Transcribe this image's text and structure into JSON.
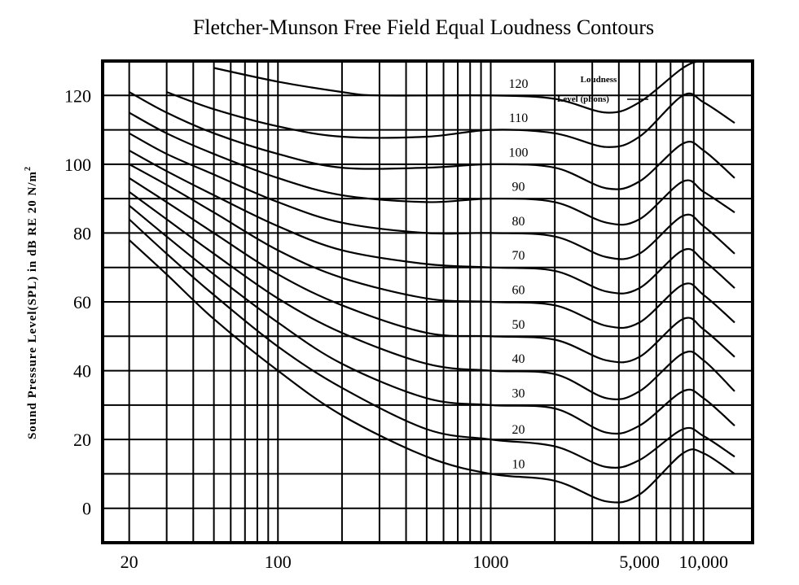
{
  "chart_data": {
    "type": "line",
    "title": "Fletcher-Munson Free Field Equal Loudness Contours",
    "xlabel": "",
    "ylabel": "Sound Pressure Level(SPL) in dB RE 20 N/m",
    "ylabel_superscript": "2",
    "x_scale": "log",
    "xlim": [
      15,
      17000
    ],
    "ylim": [
      -10,
      130
    ],
    "x_ticks": [
      20,
      100,
      1000,
      5000,
      10000
    ],
    "x_tick_labels": [
      "20",
      "100",
      "1000",
      "5,000",
      "10,000"
    ],
    "y_ticks": [
      0,
      20,
      40,
      60,
      80,
      100,
      120
    ],
    "y_tick_labels": [
      "0",
      "20",
      "40",
      "60",
      "80",
      "100",
      "120"
    ],
    "grid": true,
    "legend": {
      "title_line1": "Loudness",
      "title_line2": "Level (phons)",
      "placement": "top-right"
    },
    "series": [
      {
        "name": "10",
        "x": [
          20,
          30,
          50,
          100,
          200,
          500,
          1000,
          2000,
          3500,
          5000,
          8000,
          10000,
          14000
        ],
        "y": [
          78,
          68,
          55,
          40,
          27,
          15,
          10,
          8,
          2,
          4,
          16,
          16,
          10
        ]
      },
      {
        "name": "20",
        "x": [
          20,
          30,
          50,
          100,
          200,
          500,
          1000,
          2000,
          3500,
          5000,
          8000,
          10000,
          14000
        ],
        "y": [
          84,
          74,
          62,
          47,
          35,
          23,
          20,
          18,
          12,
          14,
          23,
          21,
          15
        ]
      },
      {
        "name": "30",
        "x": [
          20,
          30,
          50,
          100,
          200,
          500,
          1000,
          2000,
          3500,
          5000,
          8000,
          10000,
          14000
        ],
        "y": [
          88,
          79,
          68,
          54,
          42,
          32,
          30,
          29,
          22,
          24,
          34,
          32,
          24
        ]
      },
      {
        "name": "40",
        "x": [
          20,
          30,
          50,
          100,
          200,
          500,
          1000,
          2000,
          3500,
          5000,
          8000,
          10000,
          14000
        ],
        "y": [
          92,
          84,
          74,
          61,
          51,
          42,
          40,
          39,
          32,
          34,
          45,
          43,
          34
        ]
      },
      {
        "name": "50",
        "x": [
          20,
          30,
          50,
          100,
          200,
          500,
          1000,
          2000,
          3500,
          5000,
          8000,
          10000,
          14000
        ],
        "y": [
          96,
          89,
          80,
          68,
          59,
          51,
          50,
          49,
          43,
          44,
          55,
          52,
          44
        ]
      },
      {
        "name": "60",
        "x": [
          20,
          30,
          50,
          100,
          200,
          500,
          1000,
          2000,
          3500,
          5000,
          8000,
          10000,
          14000
        ],
        "y": [
          100,
          94,
          86,
          75,
          67,
          61,
          60,
          59,
          53,
          54,
          65,
          62,
          54
        ]
      },
      {
        "name": "70",
        "x": [
          20,
          30,
          50,
          100,
          200,
          500,
          1000,
          2000,
          3500,
          5000,
          8000,
          10000,
          14000
        ],
        "y": [
          104,
          98,
          91,
          82,
          75,
          71,
          70,
          69,
          63,
          64,
          75,
          72,
          64
        ]
      },
      {
        "name": "80",
        "x": [
          20,
          30,
          50,
          100,
          200,
          500,
          1000,
          2000,
          3500,
          5000,
          8000,
          10000,
          14000
        ],
        "y": [
          109,
          103,
          97,
          89,
          83,
          80,
          80,
          79,
          73,
          74,
          85,
          82,
          74
        ]
      },
      {
        "name": "90",
        "x": [
          20,
          30,
          50,
          100,
          200,
          500,
          1000,
          2000,
          3500,
          5000,
          8000,
          10000,
          14000
        ],
        "y": [
          115,
          109,
          103,
          96,
          91,
          89,
          90,
          89,
          83,
          84,
          95,
          92,
          86
        ]
      },
      {
        "name": "100",
        "x": [
          20,
          30,
          50,
          100,
          200,
          500,
          1000,
          2000,
          3500,
          5000,
          8000,
          10000,
          14000
        ],
        "y": [
          121,
          115,
          109,
          103,
          99,
          99,
          100,
          99,
          93,
          95,
          106,
          104,
          96
        ]
      },
      {
        "name": "110",
        "x": [
          30,
          50,
          100,
          200,
          500,
          1000,
          2000,
          3500,
          5000,
          8000,
          10000,
          14000
        ],
        "y": [
          121,
          116,
          111,
          108,
          108,
          110,
          109,
          105,
          108,
          120,
          118,
          112
        ]
      },
      {
        "name": "120",
        "x": [
          50,
          100,
          200,
          300,
          1000,
          2000,
          3500,
          5000,
          8000,
          10000,
          14000
        ],
        "y": [
          128,
          124,
          121,
          120,
          120,
          119,
          115,
          118,
          128,
          130,
          130
        ]
      }
    ]
  }
}
